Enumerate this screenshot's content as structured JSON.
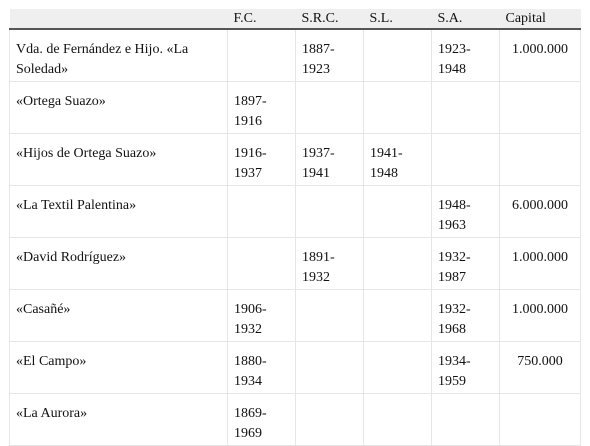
{
  "table": {
    "headers": [
      "",
      "F.C.",
      "S.R.C.",
      "S.L.",
      "S.A.",
      "Capital"
    ],
    "rows": [
      {
        "name": "Vda. de Fernández e Hijo. «La Soledad»",
        "fc": "",
        "src": "1887-\n1923",
        "sl": "",
        "sa": "1923-\n1948",
        "capital": "1.000.000"
      },
      {
        "name": "«Ortega Suazo»",
        "fc": "1897-\n1916",
        "src": "",
        "sl": "",
        "sa": "",
        "capital": ""
      },
      {
        "name": "«Hijos de Ortega Suazo»",
        "fc": "1916-\n1937",
        "src": "1937-\n1941",
        "sl": "1941-\n1948",
        "sa": "",
        "capital": ""
      },
      {
        "name": "«La Textil Palentina»",
        "fc": "",
        "src": "",
        "sl": "",
        "sa": "1948-\n1963",
        "capital": "6.000.000"
      },
      {
        "name": "«David Rodríguez»",
        "fc": "",
        "src": "1891-\n1932",
        "sl": "",
        "sa": "1932-\n1987",
        "capital": "1.000.000"
      },
      {
        "name": "«Casañé»",
        "fc": "1906-\n1932",
        "src": "",
        "sl": "",
        "sa": "1932-\n1968",
        "capital": "1.000.000"
      },
      {
        "name": "«El Campo»",
        "fc": "1880-\n1934",
        "src": "",
        "sl": "",
        "sa": "1934-\n1959",
        "capital": "750.000"
      },
      {
        "name": "«La Aurora»",
        "fc": "1869-\n1969",
        "src": "",
        "sl": "",
        "sa": "",
        "capital": ""
      }
    ]
  }
}
